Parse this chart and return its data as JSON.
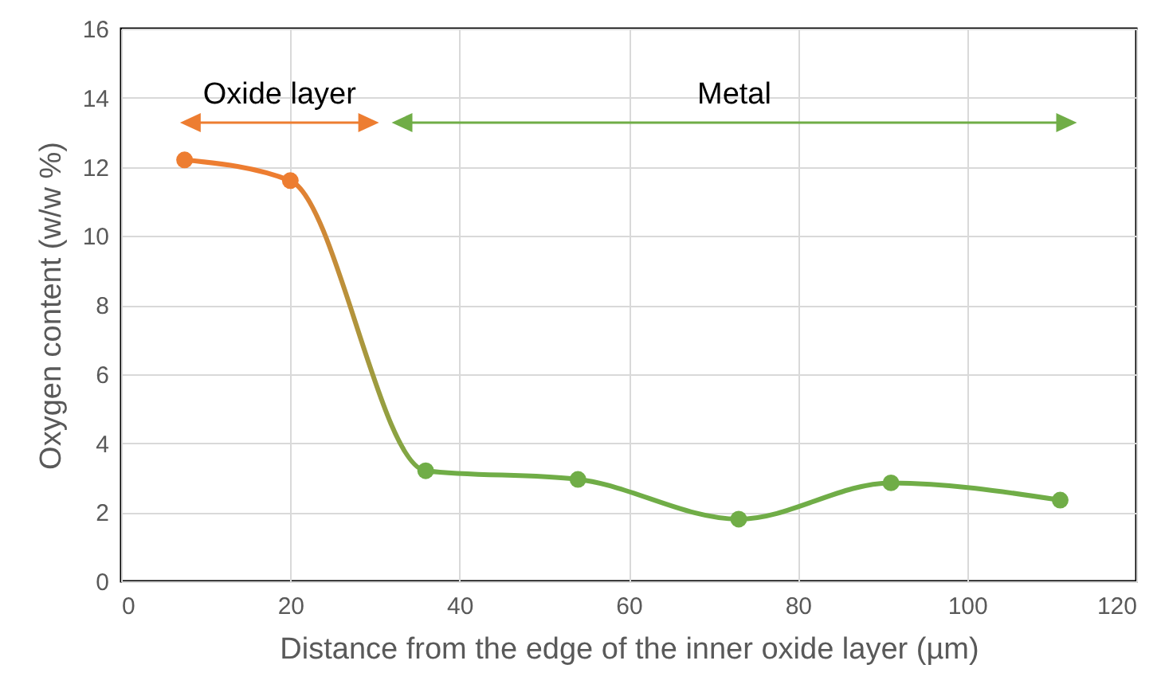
{
  "chart_data": {
    "type": "line",
    "xlabel": "Distance from the edge of the inner oxide layer (µm)",
    "ylabel": "Oxygen content (w/w %)",
    "x": [
      7.5,
      20,
      36,
      54,
      73,
      91,
      111
    ],
    "series": [
      {
        "colors": [
          "#ed7d31",
          "#ed7d31",
          "#70ad47",
          "#70ad47",
          "#70ad47",
          "#70ad47",
          "#70ad47"
        ],
        "values": [
          12.2,
          11.6,
          3.2,
          2.95,
          1.8,
          2.85,
          2.35
        ]
      }
    ],
    "xlim": [
      0,
      120
    ],
    "xticks": [
      0,
      20,
      40,
      60,
      80,
      100,
      120
    ],
    "ylim": [
      0,
      16
    ],
    "yticks": [
      0,
      2,
      4,
      6,
      8,
      10,
      12,
      14,
      16
    ],
    "grid": true,
    "marker": "circle",
    "line_style": "solid",
    "annotations": [
      "Oxide layer",
      "Metal"
    ]
  }
}
